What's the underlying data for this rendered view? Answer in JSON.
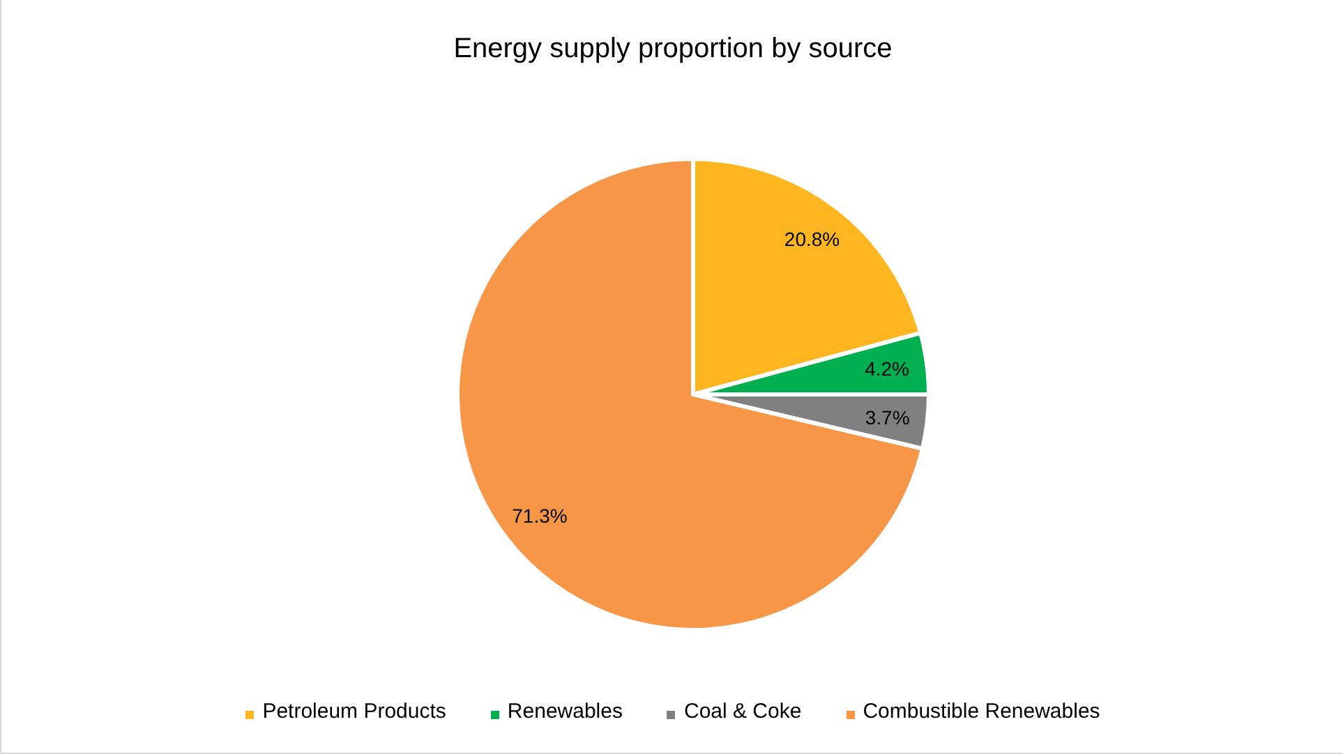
{
  "chart_data": {
    "type": "pie",
    "title": "Energy supply proportion by source",
    "categories": [
      "Petroleum Products",
      "Renewables",
      "Coal & Coke",
      "Combustible Renewables"
    ],
    "values": [
      20.8,
      4.2,
      3.7,
      71.3
    ],
    "colors": [
      "#fdb61f",
      "#00b050",
      "#808080",
      "#f79646"
    ],
    "value_labels": [
      "20.8%",
      "4.2%",
      "3.7%",
      "71.3%"
    ],
    "legend": "bottom"
  }
}
